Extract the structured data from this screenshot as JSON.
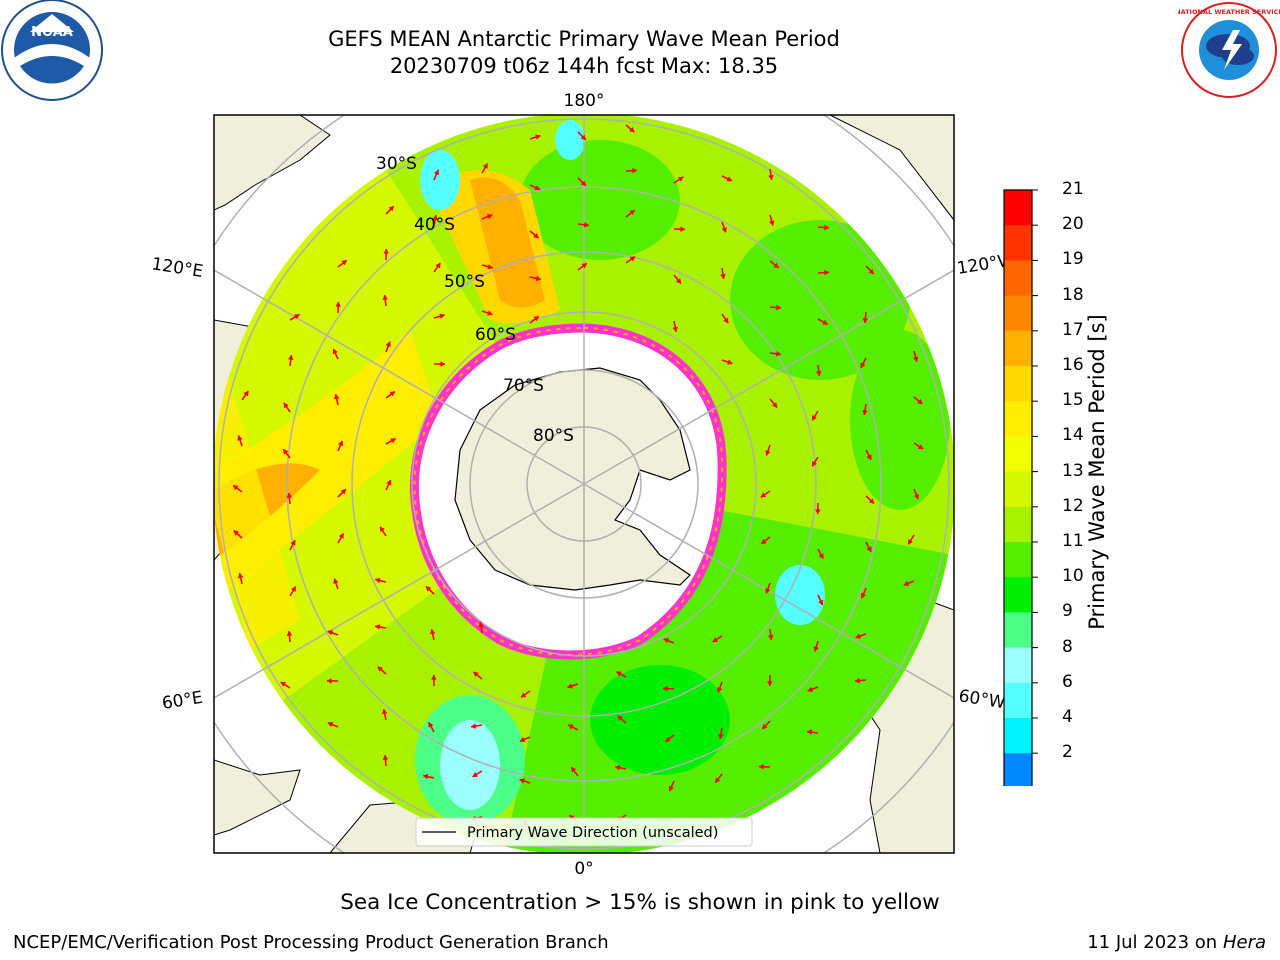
{
  "header": {
    "title_line1": "GEFS MEAN Antarctic Primary Wave Mean Period",
    "title_line2": "20230709 t06z 144h fcst   Max: 18.35"
  },
  "logos": {
    "left": {
      "icon": "noaa-logo-icon",
      "text": "NOAA"
    },
    "right": {
      "icon": "nws-logo-icon",
      "text": "NATIONAL WEATHER SERVICE"
    }
  },
  "map": {
    "projection": "south-polar-stereographic",
    "lat_labels": [
      "30°S",
      "40°S",
      "50°S",
      "60°S",
      "70°S",
      "80°S"
    ],
    "lon_labels": {
      "top": "180°",
      "bottom": "0°",
      "upper_left": "120°E",
      "lower_left": "60°E",
      "upper_right": "120°W",
      "lower_right": "60°W"
    },
    "legend_label": "Primary Wave Direction (unscaled)",
    "colors": {
      "land": "#efefdb",
      "coast": "#000000",
      "grid": "#b0b0b0",
      "arrow": "#ff0000",
      "sea_ice": "#ff33cc"
    }
  },
  "colorbar": {
    "title": "Primary Wave Mean Period [s]",
    "ticks": [
      "21",
      "20",
      "19",
      "18",
      "17",
      "16",
      "15",
      "14",
      "13",
      "12",
      "11",
      "10",
      "9",
      "8",
      "6",
      "4",
      "2"
    ],
    "colors": [
      "#ff0000",
      "#ff3300",
      "#ff6600",
      "#ff8800",
      "#ffb000",
      "#ffd800",
      "#ffee00",
      "#f0ff00",
      "#d4f800",
      "#a8f200",
      "#55ee00",
      "#00ee00",
      "#4cff88",
      "#9cffff",
      "#55ffff",
      "#00f4ff",
      "#0088ff"
    ],
    "extend_color": "#0000ff"
  },
  "caption": "Sea Ice Concentration > 15% is shown in pink to yellow",
  "footer": {
    "left": "NCEP/EMC/Verification Post Processing Product Generation Branch",
    "date": "11 Jul 2023 on ",
    "machine": "Hera"
  }
}
